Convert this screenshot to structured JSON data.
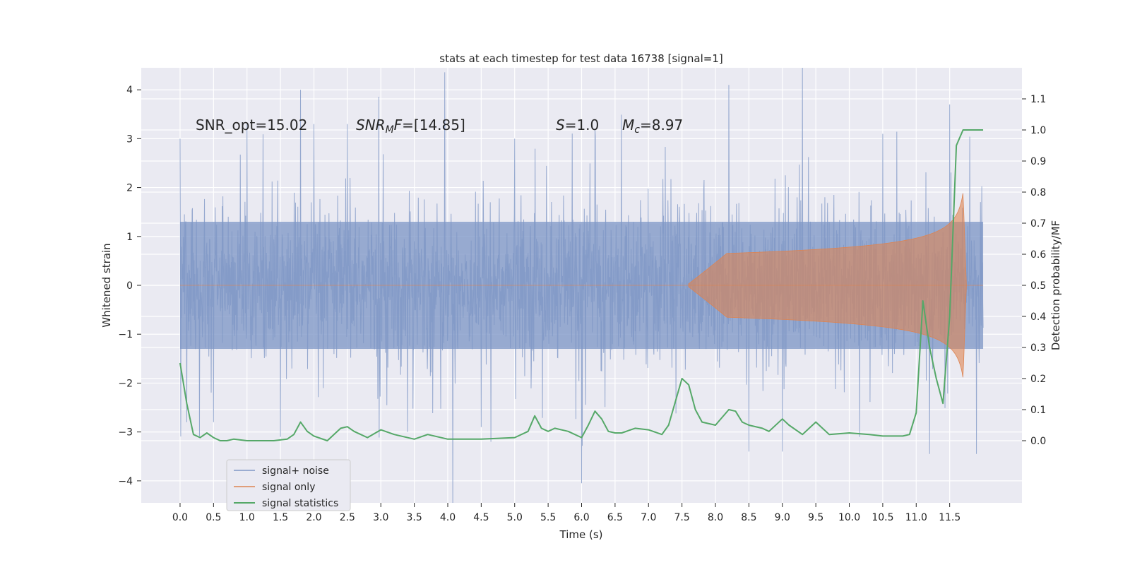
{
  "chart_data": {
    "type": "line",
    "title": "stats at each timestep for test data 16738 [signal=1]",
    "xlabel": "Time (s)",
    "ylabel": "Whitened strain",
    "ylabel_right": "Detection probability/MF",
    "xlim": [
      -0.58,
      12.58
    ],
    "ylim": [
      -4.45,
      4.45
    ],
    "ylim_right": [
      -0.2,
      1.2
    ],
    "x_ticks": [
      "0.0",
      "0.5",
      "1.0",
      "1.5",
      "2.0",
      "2.5",
      "3.0",
      "3.5",
      "4.0",
      "4.5",
      "5.0",
      "5.5",
      "6.0",
      "6.5",
      "7.0",
      "7.5",
      "8.0",
      "8.5",
      "9.0",
      "9.5",
      "10.0",
      "10.5",
      "11.0",
      "11.5"
    ],
    "y_ticks": [
      "4",
      "3",
      "2",
      "1",
      "0",
      "−1",
      "−2",
      "−3",
      "−4"
    ],
    "y_ticks_right": [
      "1.1",
      "1.0",
      "0.9",
      "0.8",
      "0.7",
      "0.6",
      "0.5",
      "0.4",
      "0.3",
      "0.2",
      "0.1",
      "0.0"
    ],
    "grid": true,
    "legend_position": "lower-left",
    "annotations": [
      {
        "id": "snr-opt",
        "text": "SNR_opt=15.02"
      },
      {
        "id": "snr-mf",
        "text": "SNR_MF=[14.85]"
      },
      {
        "id": "s",
        "text": "S=1.0"
      },
      {
        "id": "mc",
        "text": "M_c=8.97"
      }
    ],
    "series": [
      {
        "name": "signal+ noise",
        "color": "#7f97c6",
        "axis": "left",
        "kind": "noise",
        "t_range": [
          0.0,
          12.0
        ],
        "envelope_1sigma": 1.3,
        "peaks": [
          [
            0.0,
            3.0
          ],
          [
            0.1,
            -2.8
          ],
          [
            0.5,
            -2.8
          ],
          [
            1.0,
            3.3
          ],
          [
            1.5,
            -3.1
          ],
          [
            1.8,
            4.0
          ],
          [
            2.0,
            3.3
          ],
          [
            2.5,
            3.3
          ],
          [
            3.4,
            -3.0
          ],
          [
            4.5,
            -2.9
          ],
          [
            5.0,
            3.0
          ],
          [
            6.0,
            -4.05
          ],
          [
            6.2,
            3.2
          ],
          [
            8.2,
            4.1
          ],
          [
            8.5,
            -3.4
          ],
          [
            9.0,
            -3.4
          ],
          [
            10.5,
            3.1
          ],
          [
            11.5,
            3.7
          ],
          [
            11.2,
            -3.45
          ],
          [
            11.9,
            -3.45
          ]
        ]
      },
      {
        "name": "signal only",
        "color": "#dd8452",
        "axis": "left",
        "kind": "chirp",
        "t_start": 7.6,
        "t_peak": 11.7,
        "t_end": 11.75,
        "peak_amplitude": 1.9
      },
      {
        "name": "signal statistics",
        "color": "#55a868",
        "axis": "right",
        "kind": "line",
        "x": [
          0.0,
          0.1,
          0.2,
          0.3,
          0.4,
          0.5,
          0.6,
          0.7,
          0.8,
          1.0,
          1.2,
          1.4,
          1.6,
          1.7,
          1.8,
          1.9,
          2.0,
          2.2,
          2.4,
          2.5,
          2.6,
          2.8,
          3.0,
          3.2,
          3.5,
          3.7,
          4.0,
          4.5,
          5.0,
          5.2,
          5.3,
          5.4,
          5.5,
          5.6,
          5.8,
          6.0,
          6.1,
          6.2,
          6.3,
          6.4,
          6.5,
          6.6,
          6.8,
          7.0,
          7.2,
          7.3,
          7.5,
          7.6,
          7.7,
          7.8,
          8.0,
          8.2,
          8.3,
          8.4,
          8.5,
          8.7,
          8.8,
          9.0,
          9.1,
          9.3,
          9.5,
          9.7,
          10.0,
          10.3,
          10.5,
          10.8,
          10.9,
          11.0,
          11.1,
          11.2,
          11.3,
          11.4,
          11.5,
          11.6,
          11.7,
          11.8,
          12.0
        ],
        "y": [
          0.25,
          0.12,
          0.02,
          0.01,
          0.025,
          0.01,
          0.0,
          0.0,
          0.005,
          0.0,
          0.0,
          0.0,
          0.005,
          0.02,
          0.06,
          0.03,
          0.015,
          0.0,
          0.04,
          0.045,
          0.03,
          0.01,
          0.035,
          0.02,
          0.005,
          0.02,
          0.005,
          0.005,
          0.01,
          0.03,
          0.08,
          0.04,
          0.03,
          0.04,
          0.03,
          0.01,
          0.05,
          0.095,
          0.07,
          0.03,
          0.025,
          0.025,
          0.04,
          0.035,
          0.02,
          0.05,
          0.2,
          0.18,
          0.1,
          0.06,
          0.05,
          0.1,
          0.095,
          0.06,
          0.05,
          0.04,
          0.03,
          0.07,
          0.05,
          0.02,
          0.06,
          0.02,
          0.025,
          0.02,
          0.015,
          0.015,
          0.02,
          0.09,
          0.45,
          0.3,
          0.2,
          0.12,
          0.4,
          0.95,
          1.0,
          1.0,
          1.0
        ]
      }
    ]
  }
}
